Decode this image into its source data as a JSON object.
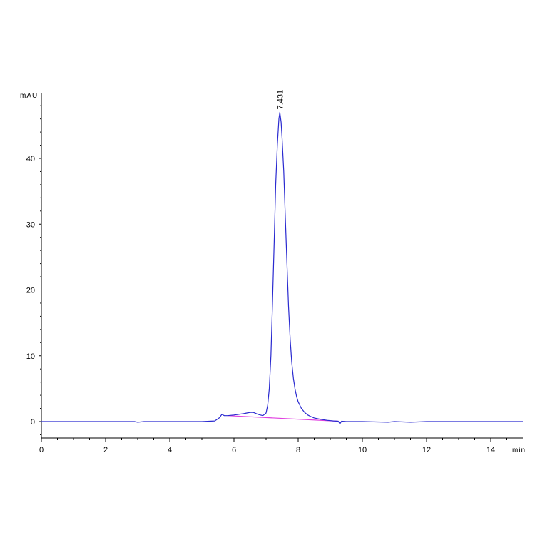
{
  "chart_data": {
    "type": "line",
    "ylabel": "mAU",
    "xlabel": "min",
    "xlim": [
      0,
      15
    ],
    "ylim": [
      -2.5,
      50
    ],
    "x_ticks": [
      0,
      2,
      4,
      6,
      8,
      10,
      12,
      14
    ],
    "y_ticks": [
      0,
      10,
      20,
      30,
      40
    ],
    "grid": false,
    "legend": "none",
    "colors": {
      "signal": "#2a2ad0",
      "baseline": "#e040e0",
      "axis": "#000000"
    },
    "series": [
      {
        "x": [
          0,
          1,
          2,
          2.9,
          3.0,
          3.2,
          4,
          5,
          5.4,
          5.55,
          5.62,
          5.7,
          5.8,
          6.0,
          6.3,
          6.5,
          6.6,
          6.75,
          6.9,
          7.0,
          7.05,
          7.1,
          7.15,
          7.2,
          7.25,
          7.3,
          7.35,
          7.4,
          7.43,
          7.47,
          7.5,
          7.55,
          7.6,
          7.65,
          7.7,
          7.75,
          7.8,
          7.85,
          7.9,
          7.95,
          8.0,
          8.1,
          8.2,
          8.3,
          8.4,
          8.5,
          8.7,
          8.9,
          9.1,
          9.25,
          9.3,
          9.35,
          9.5,
          10,
          10.8,
          11,
          11.5,
          12,
          13,
          14,
          15
        ],
        "y": [
          0,
          0,
          0,
          0,
          -0.1,
          0,
          0,
          0,
          0.1,
          0.6,
          1.1,
          0.9,
          0.9,
          1.0,
          1.2,
          1.4,
          1.4,
          1.1,
          0.9,
          1.3,
          2.5,
          5,
          10,
          18,
          27,
          36,
          42,
          46,
          47,
          45.5,
          43,
          38,
          31,
          24,
          17.5,
          12.5,
          9,
          6.6,
          5,
          3.8,
          3.0,
          2.0,
          1.4,
          1.0,
          0.75,
          0.55,
          0.35,
          0.2,
          0.1,
          0.05,
          -0.35,
          0.05,
          0,
          0,
          -0.1,
          0,
          -0.1,
          0,
          0,
          0,
          0
        ]
      },
      {
        "x": [
          5.8,
          9.25
        ],
        "y": [
          0.9,
          0.05
        ]
      }
    ],
    "annotations": [
      {
        "text": "7.431",
        "x": 7.431,
        "y": 47
      }
    ]
  }
}
